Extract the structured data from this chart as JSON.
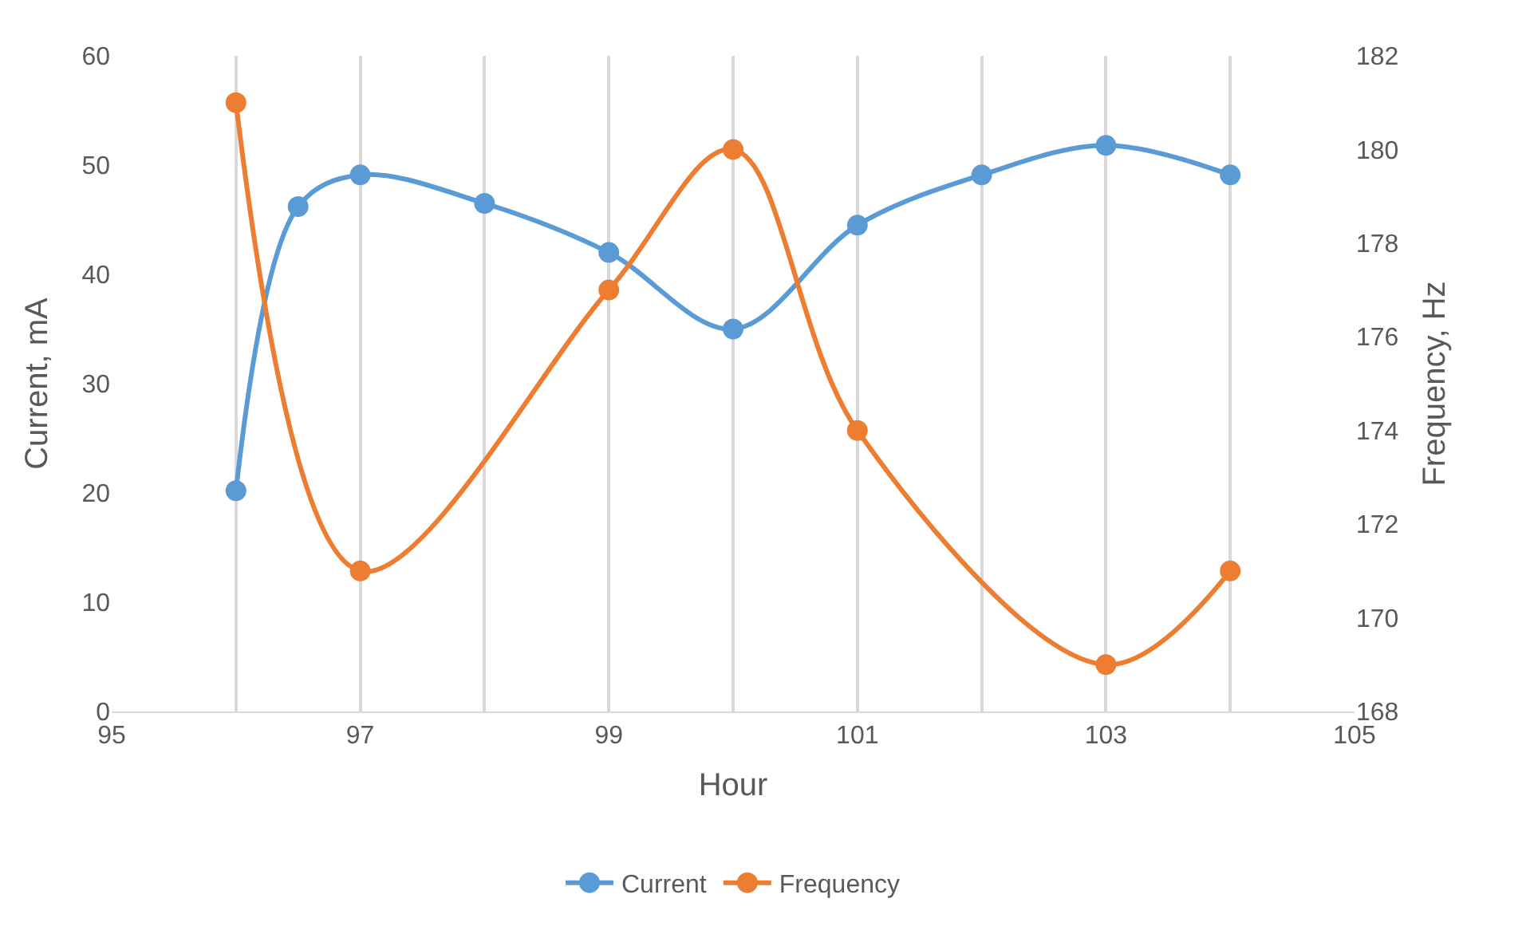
{
  "chart_data": {
    "type": "line",
    "xlabel": "Hour",
    "ylabel": "Current, mA",
    "y2label": "Frequency, Hz",
    "series": [
      {
        "name": "Current",
        "color": "#5b9bd5",
        "x": [
          96,
          96.5,
          97,
          98,
          99,
          100,
          101,
          102,
          103,
          104
        ],
        "values": [
          20.2,
          46.2,
          49.1,
          46.5,
          42,
          35,
          44.5,
          49.1,
          51.8,
          49.1
        ]
      },
      {
        "name": "Frequency",
        "color": "#ed7d31",
        "axis": "y2",
        "x": [
          96,
          97,
          99,
          100,
          101,
          103,
          104
        ],
        "values": [
          181,
          171,
          177,
          180,
          174,
          169,
          171
        ]
      }
    ],
    "xlim": [
      95,
      105
    ],
    "xticks": [
      95,
      {
        "value": 96,
        "label": null
      },
      97,
      {
        "value": 98,
        "label": null
      },
      99,
      {
        "value": 100,
        "label": null
      },
      101,
      {
        "value": 102,
        "label": null
      },
      103,
      {
        "value": 104,
        "label": null
      },
      105
    ],
    "ylim": [
      0,
      60
    ],
    "yticks": [
      0,
      10,
      20,
      30,
      40,
      50,
      60
    ],
    "y2lim": [
      168,
      182
    ],
    "y2ticks": [
      168,
      170,
      172,
      174,
      176,
      178,
      180,
      182
    ],
    "grid": "x",
    "legend": "bottom",
    "marker": "circle",
    "line_style": "solid"
  }
}
